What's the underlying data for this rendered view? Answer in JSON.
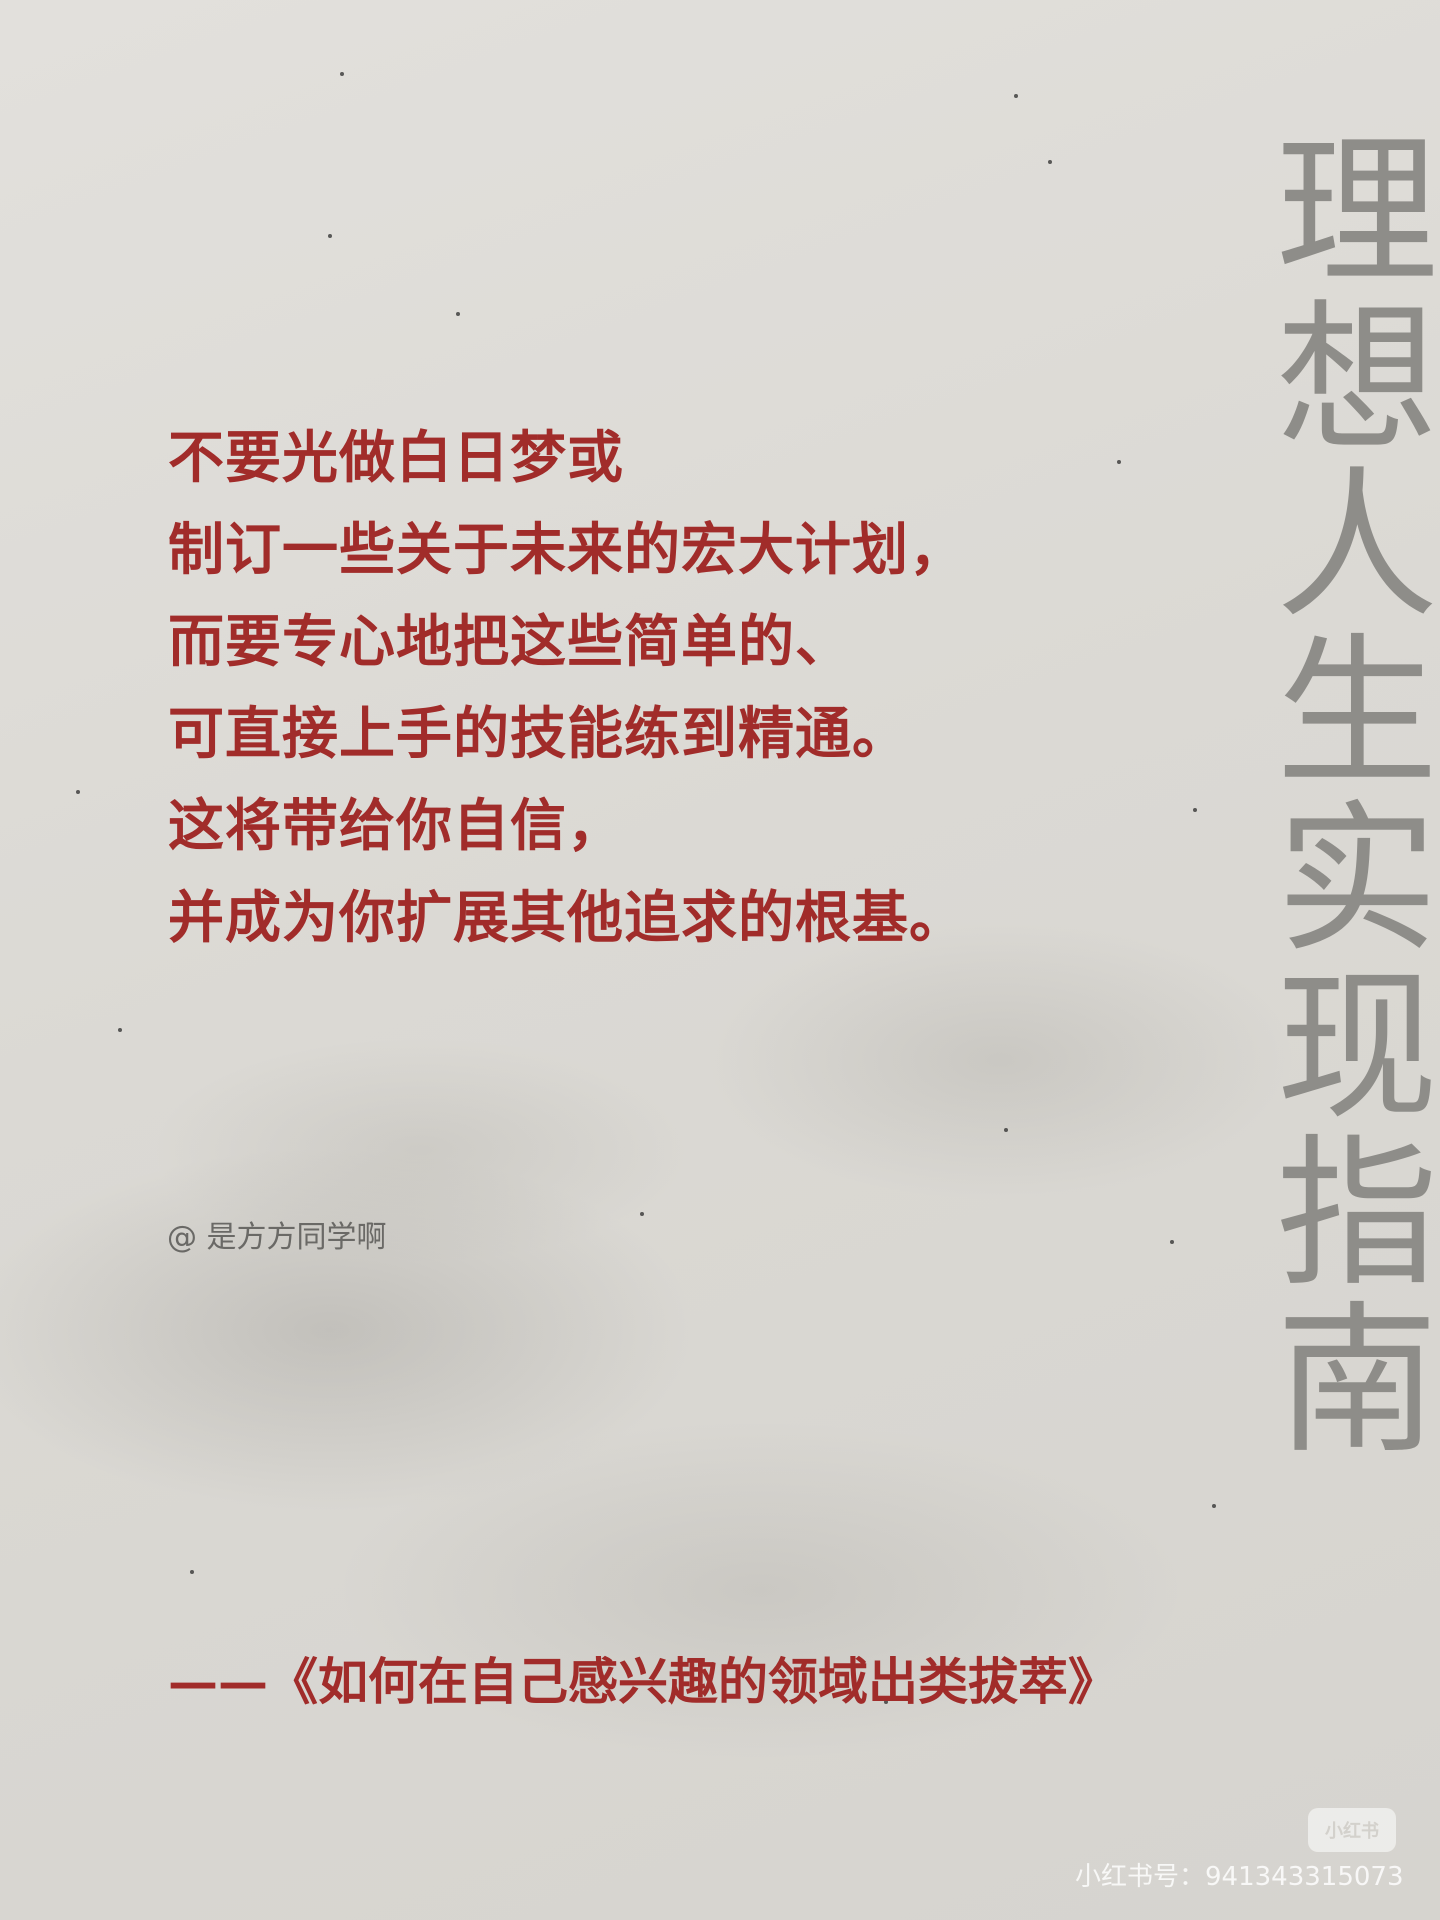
{
  "vertical_title": [
    "理",
    "想",
    "人",
    "生",
    "实",
    "现",
    "指",
    "南"
  ],
  "quote_lines": [
    "不要光做白日梦或",
    "制订一些关于未来的宏大计划，",
    "而要专心地把这些简单的、",
    "可直接上手的技能练到精通。",
    "这将带给你自信，",
    "并成为你扩展其他追求的根基。"
  ],
  "author_handle": "@ 是方方同学啊",
  "source": "——《如何在自己感兴趣的领域出类拔萃》",
  "watermark": {
    "logo_text": "小红书",
    "id_text": "小红书号：941343315073"
  },
  "colors": {
    "quote_red": "#a12c2a",
    "title_gray": "#8e8d89",
    "paper": "#dcdad5"
  }
}
